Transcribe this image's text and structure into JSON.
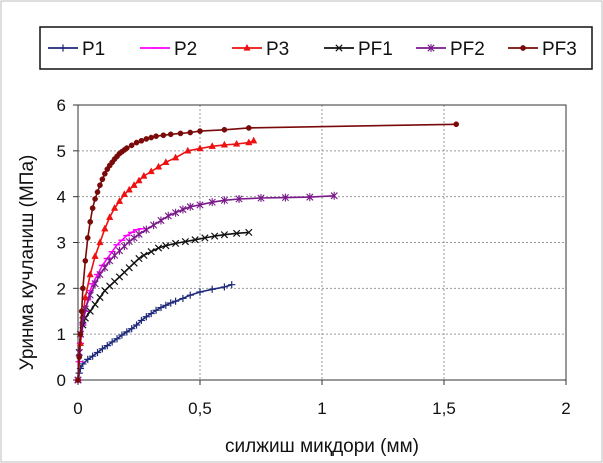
{
  "chart_data": {
    "type": "line",
    "title": "",
    "xlabel": "силжиш миқдори (мм)",
    "ylabel": "Уринма кучланиш  (МПа)",
    "xlim": [
      0,
      2
    ],
    "ylim": [
      0,
      6
    ],
    "xticks": [
      0,
      0.5,
      1,
      1.5,
      2
    ],
    "xtick_labels": [
      "0",
      "0,5",
      "1",
      "1,5",
      "2"
    ],
    "yticks": [
      0,
      1,
      2,
      3,
      4,
      5,
      6
    ],
    "ytick_labels": [
      "0",
      "1",
      "2",
      "3",
      "4",
      "5",
      "6"
    ],
    "grid": true,
    "legend_position": "top",
    "series": [
      {
        "name": "P1",
        "color": "#1f2a7a",
        "marker": "plus",
        "x": [
          0,
          0.005,
          0.01,
          0.02,
          0.04,
          0.06,
          0.08,
          0.1,
          0.12,
          0.14,
          0.16,
          0.18,
          0.2,
          0.22,
          0.24,
          0.26,
          0.28,
          0.3,
          0.32,
          0.34,
          0.36,
          0.38,
          0.4,
          0.43,
          0.46,
          0.5,
          0.55,
          0.6,
          0.63
        ],
        "y": [
          0,
          0.15,
          0.25,
          0.35,
          0.45,
          0.52,
          0.6,
          0.68,
          0.75,
          0.83,
          0.9,
          0.98,
          1.05,
          1.12,
          1.2,
          1.3,
          1.38,
          1.45,
          1.52,
          1.58,
          1.63,
          1.68,
          1.72,
          1.78,
          1.85,
          1.92,
          1.98,
          2.03,
          2.08
        ]
      },
      {
        "name": "P2",
        "color": "#ff00ff",
        "marker": "dash",
        "x": [
          0,
          0.005,
          0.01,
          0.02,
          0.03,
          0.04,
          0.05,
          0.06,
          0.08,
          0.1,
          0.12,
          0.14,
          0.16,
          0.18,
          0.2,
          0.22,
          0.24,
          0.26
        ],
        "y": [
          0,
          0.4,
          0.8,
          1.2,
          1.5,
          1.75,
          1.95,
          2.1,
          2.3,
          2.5,
          2.65,
          2.8,
          2.95,
          3.05,
          3.15,
          3.22,
          3.28,
          3.3
        ]
      },
      {
        "name": "P3",
        "color": "#ee1111",
        "marker": "triangle",
        "x": [
          0,
          0.01,
          0.02,
          0.03,
          0.05,
          0.07,
          0.09,
          0.11,
          0.13,
          0.15,
          0.17,
          0.19,
          0.21,
          0.23,
          0.25,
          0.27,
          0.3,
          0.33,
          0.36,
          0.4,
          0.45,
          0.5,
          0.55,
          0.6,
          0.65,
          0.7,
          0.72
        ],
        "y": [
          0,
          0.8,
          1.4,
          1.8,
          2.3,
          2.7,
          3.0,
          3.3,
          3.55,
          3.75,
          3.9,
          4.05,
          4.15,
          4.25,
          4.35,
          4.45,
          4.55,
          4.65,
          4.75,
          4.85,
          5.0,
          5.05,
          5.1,
          5.13,
          5.15,
          5.18,
          5.22
        ]
      },
      {
        "name": "PF1",
        "color": "#111111",
        "marker": "x",
        "x": [
          0,
          0.005,
          0.01,
          0.02,
          0.03,
          0.05,
          0.07,
          0.09,
          0.11,
          0.13,
          0.15,
          0.17,
          0.19,
          0.21,
          0.23,
          0.25,
          0.27,
          0.3,
          0.33,
          0.36,
          0.4,
          0.44,
          0.48,
          0.52,
          0.56,
          0.6,
          0.65,
          0.7
        ],
        "y": [
          0,
          0.6,
          1.0,
          1.2,
          1.35,
          1.5,
          1.65,
          1.8,
          1.95,
          2.05,
          2.15,
          2.25,
          2.35,
          2.45,
          2.55,
          2.65,
          2.72,
          2.8,
          2.88,
          2.93,
          2.98,
          3.02,
          3.06,
          3.1,
          3.14,
          3.17,
          3.2,
          3.22
        ]
      },
      {
        "name": "PF2",
        "color": "#7a1a8a",
        "marker": "star",
        "x": [
          0,
          0.005,
          0.01,
          0.02,
          0.03,
          0.05,
          0.07,
          0.09,
          0.11,
          0.13,
          0.15,
          0.17,
          0.19,
          0.21,
          0.23,
          0.25,
          0.28,
          0.31,
          0.34,
          0.37,
          0.4,
          0.43,
          0.46,
          0.5,
          0.55,
          0.6,
          0.66,
          0.75,
          0.85,
          0.95,
          1.05
        ],
        "y": [
          0,
          0.6,
          1.0,
          1.3,
          1.55,
          1.85,
          2.1,
          2.3,
          2.45,
          2.6,
          2.72,
          2.82,
          2.92,
          3.02,
          3.1,
          3.18,
          3.28,
          3.38,
          3.48,
          3.58,
          3.65,
          3.72,
          3.78,
          3.82,
          3.88,
          3.92,
          3.95,
          3.97,
          3.98,
          3.99,
          4.02
        ]
      },
      {
        "name": "PF3",
        "color": "#7a0a0a",
        "marker": "circle",
        "x": [
          0,
          0.005,
          0.01,
          0.015,
          0.02,
          0.03,
          0.04,
          0.05,
          0.06,
          0.07,
          0.08,
          0.09,
          0.1,
          0.11,
          0.12,
          0.13,
          0.14,
          0.15,
          0.16,
          0.17,
          0.18,
          0.19,
          0.2,
          0.22,
          0.24,
          0.26,
          0.28,
          0.3,
          0.32,
          0.35,
          0.38,
          0.42,
          0.46,
          0.5,
          0.6,
          0.7,
          1.55
        ],
        "y": [
          0,
          0.5,
          1.0,
          1.5,
          2.0,
          2.6,
          3.1,
          3.45,
          3.75,
          3.95,
          4.1,
          4.25,
          4.38,
          4.5,
          4.6,
          4.68,
          4.75,
          4.82,
          4.88,
          4.94,
          4.98,
          5.02,
          5.06,
          5.12,
          5.18,
          5.22,
          5.26,
          5.29,
          5.32,
          5.34,
          5.36,
          5.38,
          5.4,
          5.43,
          5.46,
          5.5,
          5.58
        ]
      }
    ]
  }
}
